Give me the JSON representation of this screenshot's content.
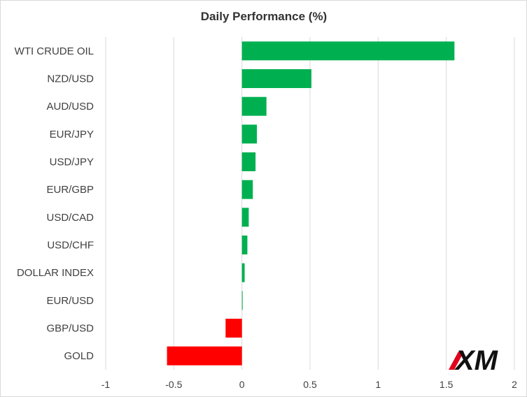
{
  "chart_data": {
    "type": "bar",
    "orientation": "horizontal",
    "title": "Daily Performance  (%)",
    "xlabel": "",
    "ylabel": "",
    "categories": [
      "WTI CRUDE OIL",
      "NZD/USD",
      "AUD/USD",
      "EUR/JPY",
      "USD/JPY",
      "EUR/GBP",
      "USD/CAD",
      "USD/CHF",
      "DOLLAR INDEX",
      "EUR/USD",
      "GBP/USD",
      "GOLD"
    ],
    "values": [
      1.56,
      0.51,
      0.18,
      0.11,
      0.1,
      0.08,
      0.05,
      0.04,
      0.02,
      0.005,
      -0.12,
      -0.55
    ],
    "xlim": [
      -1,
      2
    ],
    "xticks": [
      -1,
      -0.5,
      0,
      0.5,
      1,
      1.5,
      2
    ],
    "xtick_labels": [
      "-1",
      "-0.5",
      "0",
      "0.5",
      "1",
      "1.5",
      "2"
    ],
    "grid": "vertical",
    "legend": "none",
    "colors": {
      "positive": "#00b050",
      "negative": "#ff0000",
      "grid": "#d9d9d9"
    }
  },
  "logo": {
    "text": "XM",
    "accent_color": "#e3001b"
  }
}
